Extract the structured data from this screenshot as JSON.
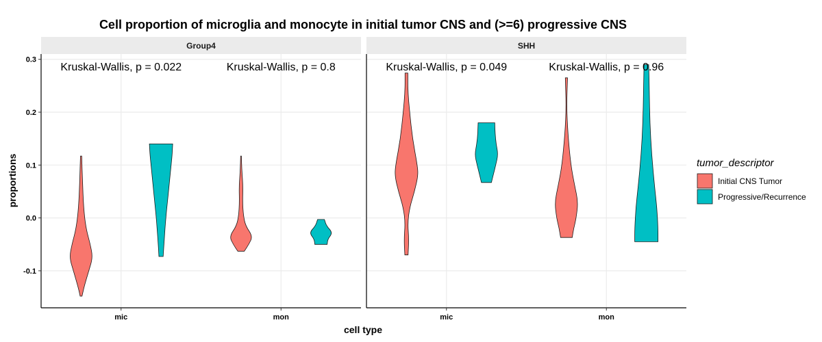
{
  "chart_data": {
    "type": "violin",
    "title": "Cell proportion of microglia and monocyte in initial tumor CNS and  (>=6) progressive CNS",
    "xlabel": "cell type",
    "ylabel": "proportions",
    "categories": [
      "mic",
      "mon"
    ],
    "y_ticks": [
      {
        "value": 0.3,
        "label": "0.3"
      },
      {
        "value": 0.2,
        "label": "0.2"
      },
      {
        "value": 0.1,
        "label": "0.1"
      },
      {
        "value": 0.0,
        "label": "0.0"
      },
      {
        "value": -0.1,
        "label": "-0.1"
      }
    ],
    "ylim": [
      -0.17,
      0.31
    ],
    "grid": true,
    "legend": {
      "title": "tumor_descriptor",
      "position": "right",
      "entries": [
        {
          "label": "Initial CNS Tumor",
          "color": "#F8766D"
        },
        {
          "label": "Progressive/Recurrence",
          "color": "#00BFC4"
        }
      ]
    },
    "panels": [
      {
        "strip": "Group4",
        "annotations": [
          "Kruskal-Wallis, p = 0.022",
          "Kruskal-Wallis, p = 0.8"
        ],
        "violins": [
          {
            "category": "mic",
            "group": 0,
            "profile": [
              [
                0.117,
                0.2
              ],
              [
                0.07,
                0.45
              ],
              [
                0.02,
                0.8
              ],
              [
                -0.02,
                1.6
              ],
              [
                -0.05,
                3.0
              ],
              [
                -0.075,
                3.8
              ],
              [
                -0.1,
                2.5
              ],
              [
                -0.13,
                1.0
              ],
              [
                -0.148,
                0.3
              ]
            ]
          },
          {
            "category": "mic",
            "group": 1,
            "profile": [
              [
                0.14,
                1.1
              ],
              [
                0.12,
                1.05
              ],
              [
                0.09,
                0.9
              ],
              [
                0.06,
                0.75
              ],
              [
                0.03,
                0.6
              ],
              [
                0.0,
                0.45
              ],
              [
                -0.04,
                0.3
              ],
              [
                -0.073,
                0.2
              ]
            ]
          },
          {
            "category": "mon",
            "group": 0,
            "profile": [
              [
                0.117,
                0.3
              ],
              [
                0.09,
                0.6
              ],
              [
                0.06,
                1.5
              ],
              [
                0.03,
                1.2
              ],
              [
                0.005,
                1.8
              ],
              [
                -0.015,
                3.5
              ],
              [
                -0.035,
                9.0
              ],
              [
                -0.05,
                6.0
              ],
              [
                -0.063,
                2.5
              ]
            ]
          },
          {
            "category": "mon",
            "group": 1,
            "profile": [
              [
                -0.003,
                2.5
              ],
              [
                -0.015,
                4.0
              ],
              [
                -0.028,
                8.5
              ],
              [
                -0.04,
                5.0
              ],
              [
                -0.05,
                4.5
              ]
            ]
          }
        ]
      },
      {
        "strip": "SHH",
        "annotations": [
          "Kruskal-Wallis, p = 0.049",
          "Kruskal-Wallis, p = 0.96"
        ],
        "violins": [
          {
            "category": "mic",
            "group": 0,
            "profile": [
              [
                0.274,
                0.35
              ],
              [
                0.24,
                0.35
              ],
              [
                0.2,
                0.8
              ],
              [
                0.15,
                1.5
              ],
              [
                0.1,
                2.7
              ],
              [
                0.08,
                2.9
              ],
              [
                0.05,
                2.0
              ],
              [
                0.02,
                0.8
              ],
              [
                -0.01,
                0.3
              ],
              [
                -0.04,
                0.6
              ],
              [
                -0.07,
                0.4
              ]
            ]
          },
          {
            "category": "mic",
            "group": 1,
            "profile": [
              [
                0.18,
                2.5
              ],
              [
                0.16,
                2.6
              ],
              [
                0.14,
                2.9
              ],
              [
                0.12,
                3.5
              ],
              [
                0.1,
                2.8
              ],
              [
                0.08,
                2.0
              ],
              [
                0.067,
                1.5
              ]
            ]
          },
          {
            "category": "mon",
            "group": 0,
            "profile": [
              [
                0.265,
                0.3
              ],
              [
                0.21,
                0.05
              ],
              [
                0.16,
                0.4
              ],
              [
                0.1,
                1.2
              ],
              [
                0.06,
                2.3
              ],
              [
                0.03,
                3.2
              ],
              [
                0.0,
                2.7
              ],
              [
                -0.02,
                2.0
              ],
              [
                -0.037,
                1.6
              ]
            ]
          },
          {
            "category": "mon",
            "group": 1,
            "profile": [
              [
                0.29,
                0.4
              ],
              [
                0.24,
                0.5
              ],
              [
                0.18,
                0.6
              ],
              [
                0.12,
                0.9
              ],
              [
                0.06,
                1.4
              ],
              [
                0.02,
                1.8
              ],
              [
                -0.02,
                2.0
              ],
              [
                -0.045,
                2.0
              ]
            ]
          }
        ]
      }
    ]
  }
}
